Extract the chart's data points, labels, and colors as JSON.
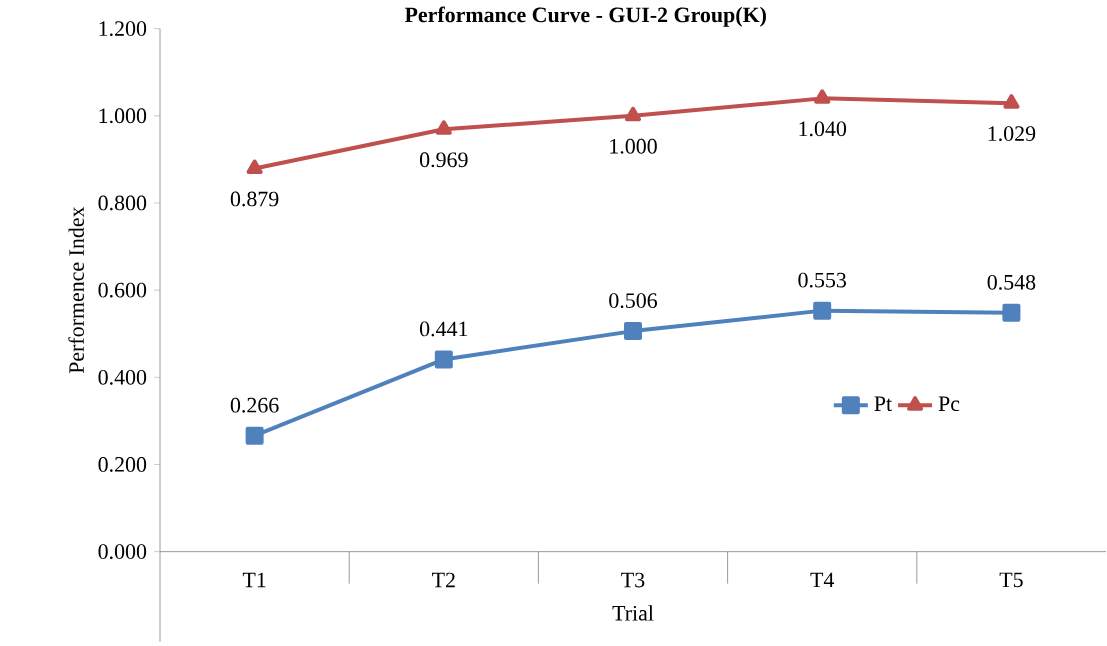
{
  "chart_data": {
    "type": "line",
    "title": "Performance Curve - GUI-2 Group(K)",
    "xlabel": "Trial",
    "ylabel": "Performence  Index",
    "categories": [
      "T1",
      "T2",
      "T3",
      "T4",
      "T5"
    ],
    "series": [
      {
        "name": "Pt",
        "color": "#4f81bd",
        "marker": "square",
        "values": [
          0.266,
          0.441,
          0.506,
          0.553,
          0.548
        ],
        "value_labels": [
          "0.266",
          "0.441",
          "0.506",
          "0.553",
          "0.548"
        ]
      },
      {
        "name": "Pc",
        "color": "#c0504d",
        "marker": "triangle",
        "values": [
          0.879,
          0.969,
          1.0,
          1.04,
          1.029
        ],
        "value_labels": [
          "0.879",
          "0.969",
          "1.000",
          "1.040",
          "1.029"
        ]
      }
    ],
    "ylim": [
      0,
      1.2
    ],
    "yticks": [
      {
        "value": 0,
        "label": "0.000"
      },
      {
        "value": 0.2,
        "label": "0.200"
      },
      {
        "value": 0.4,
        "label": "0.400"
      },
      {
        "value": 0.6,
        "label": "0.600"
      },
      {
        "value": 0.8,
        "label": "0.800"
      },
      {
        "value": 1.0,
        "label": "1.000"
      },
      {
        "value": 1.2,
        "label": "1.200"
      }
    ],
    "grid": false,
    "legend": "right",
    "line_style": "solid"
  }
}
